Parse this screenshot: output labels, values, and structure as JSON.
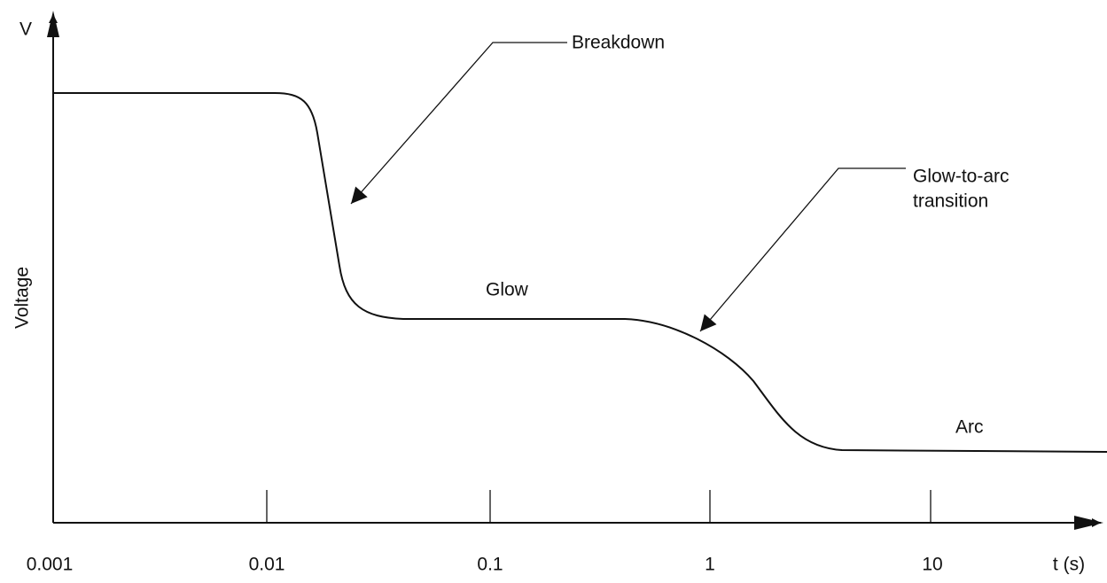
{
  "axes": {
    "y_symbol": "V",
    "y_label": "Voltage",
    "x_label": "t (s)",
    "x_ticks": [
      "0.001",
      "0.01",
      "0.1",
      "1",
      "10"
    ]
  },
  "annotations": {
    "breakdown": "Breakdown",
    "glow": "Glow",
    "transition": [
      "Glow-to-arc",
      "transition"
    ],
    "arc": "Arc"
  }
}
